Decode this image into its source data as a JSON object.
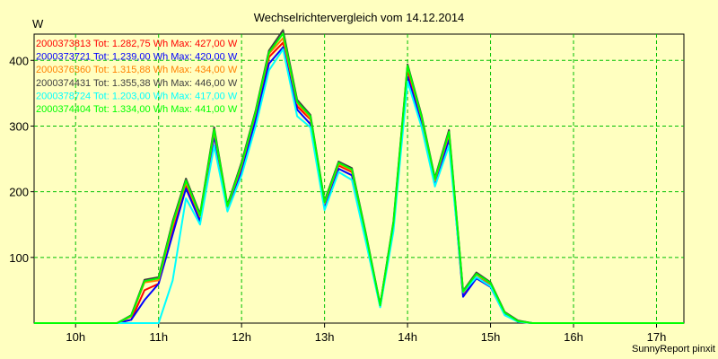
{
  "chart_data": {
    "type": "line",
    "title": "Wechselrichtervergleich vom 14.12.2014",
    "ylabel": "W",
    "xlabel": "",
    "credit": "SunnyReport pinxit",
    "ylim": [
      0,
      440
    ],
    "yticks": [
      100,
      200,
      300,
      400
    ],
    "xlim": [
      9.5,
      17.33
    ],
    "xticks": [
      {
        "value": 10,
        "label": "10h"
      },
      {
        "value": 11,
        "label": "11h"
      },
      {
        "value": 12,
        "label": "12h"
      },
      {
        "value": 13,
        "label": "13h"
      },
      {
        "value": 14,
        "label": "14h"
      },
      {
        "value": 15,
        "label": "15h"
      },
      {
        "value": 16,
        "label": "16h"
      },
      {
        "value": 17,
        "label": "17h"
      }
    ],
    "grid": true,
    "x": [
      9.5,
      9.67,
      9.83,
      10.0,
      10.17,
      10.33,
      10.5,
      10.67,
      10.83,
      11.0,
      11.17,
      11.33,
      11.5,
      11.67,
      11.83,
      12.0,
      12.17,
      12.33,
      12.5,
      12.67,
      12.83,
      13.0,
      13.17,
      13.33,
      13.5,
      13.67,
      13.83,
      14.0,
      14.17,
      14.33,
      14.5,
      14.67,
      14.83,
      15.0,
      15.17,
      15.33,
      15.5,
      15.67,
      15.83,
      16.0,
      16.17,
      16.33,
      16.5,
      16.67,
      16.83,
      17.0,
      17.17,
      17.33
    ],
    "series": [
      {
        "name": "2000373813 Tot: 1.282,75 Wh Max: 427,00 W",
        "color": "#ff0000",
        "values": [
          0,
          0,
          0,
          0,
          0,
          0,
          0,
          5,
          50,
          60,
          140,
          210,
          160,
          290,
          175,
          235,
          315,
          405,
          427,
          330,
          310,
          180,
          240,
          230,
          130,
          28,
          150,
          385,
          310,
          215,
          285,
          45,
          70,
          58,
          15,
          3,
          0,
          0,
          0,
          0,
          0,
          0,
          0,
          0,
          0,
          0,
          0,
          0
        ]
      },
      {
        "name": "2000373721 Tot: 1.239,00 Wh Max: 420,00 W",
        "color": "#0000ff",
        "values": [
          0,
          0,
          0,
          0,
          0,
          0,
          0,
          5,
          35,
          60,
          135,
          205,
          155,
          285,
          172,
          230,
          310,
          395,
          420,
          325,
          303,
          177,
          235,
          225,
          125,
          25,
          145,
          375,
          305,
          212,
          280,
          40,
          68,
          55,
          13,
          2,
          0,
          0,
          0,
          0,
          0,
          0,
          0,
          0,
          0,
          0,
          0,
          0
        ]
      },
      {
        "name": "2000376360 Tot: 1.315,88 Wh Max: 434,00 W",
        "color": "#ff8000",
        "values": [
          0,
          0,
          0,
          0,
          0,
          0,
          0,
          10,
          62,
          65,
          148,
          214,
          162,
          292,
          177,
          240,
          320,
          410,
          434,
          335,
          312,
          182,
          242,
          232,
          132,
          27,
          152,
          390,
          312,
          217,
          288,
          47,
          74,
          60,
          16,
          3,
          0,
          0,
          0,
          0,
          0,
          0,
          0,
          0,
          0,
          0,
          0,
          0
        ]
      },
      {
        "name": "2000374431 Tot: 1.355,38 Wh Max: 446,00 W",
        "color": "#404040",
        "values": [
          0,
          0,
          0,
          0,
          0,
          0,
          0,
          12,
          66,
          70,
          155,
          220,
          166,
          298,
          180,
          245,
          324,
          415,
          446,
          340,
          317,
          186,
          246,
          236,
          135,
          28,
          155,
          394,
          316,
          221,
          294,
          49,
          77,
          62,
          17,
          4,
          0,
          0,
          0,
          0,
          0,
          0,
          0,
          0,
          0,
          0,
          0,
          0
        ]
      },
      {
        "name": "2000378724 Tot: 1.203,00 Wh Max: 417,00 W",
        "color": "#00ffff",
        "values": [
          0,
          0,
          0,
          0,
          0,
          0,
          0,
          0,
          0,
          0,
          65,
          190,
          150,
          270,
          170,
          225,
          300,
          385,
          417,
          315,
          298,
          172,
          230,
          218,
          122,
          24,
          140,
          368,
          298,
          208,
          270,
          47,
          70,
          56,
          12,
          2,
          0,
          0,
          0,
          0,
          0,
          0,
          0,
          0,
          0,
          0,
          0,
          0
        ]
      },
      {
        "name": "2000374404 Tot: 1.334,00 Wh Max: 441,00 W",
        "color": "#00ff00",
        "values": [
          0,
          0,
          0,
          0,
          0,
          0,
          0,
          11,
          64,
          68,
          152,
          217,
          164,
          295,
          178,
          242,
          322,
          412,
          441,
          337,
          315,
          184,
          244,
          234,
          133,
          27,
          153,
          392,
          314,
          219,
          291,
          48,
          75,
          61,
          16,
          3,
          0,
          0,
          0,
          0,
          0,
          0,
          0,
          0,
          0,
          0,
          0,
          0
        ]
      }
    ]
  }
}
